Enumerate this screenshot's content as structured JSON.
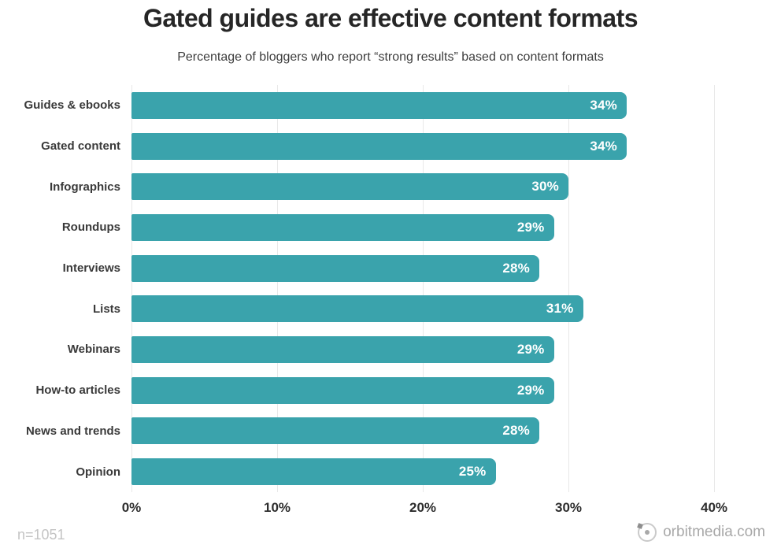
{
  "header": {
    "title": "Gated guides are effective content formats",
    "subtitle": "Percentage of bloggers who report “strong results” based on content formats"
  },
  "chart_data": {
    "type": "bar",
    "orientation": "horizontal",
    "title": "Gated guides are effective content formats",
    "subtitle": "Percentage of bloggers who report “strong results” based on content formats",
    "categories": [
      "Guides & ebooks",
      "Gated content",
      "Infographics",
      "Roundups",
      "Interviews",
      "Lists",
      "Webinars",
      "How-to articles",
      "News and trends",
      "Opinion"
    ],
    "values": [
      34,
      34,
      30,
      29,
      28,
      31,
      29,
      29,
      28,
      25
    ],
    "value_labels": [
      "34%",
      "34%",
      "30%",
      "29%",
      "28%",
      "31%",
      "29%",
      "29%",
      "28%",
      "25%"
    ],
    "xlabel": "",
    "ylabel": "",
    "x_ticks": [
      "0%",
      "10%",
      "20%",
      "30%",
      "40%"
    ],
    "x_tick_values": [
      0,
      10,
      20,
      30,
      40
    ],
    "xlim": [
      0,
      41.2
    ],
    "grid": true,
    "legend": false,
    "bar_color": "#3aa3ac",
    "value_label_color": "#ffffff",
    "gridline_color": "#e8e8e8"
  },
  "footer": {
    "sample_size": "n=1051",
    "brand": "orbitmedia.com",
    "brand_icon": "orbit-logo-icon"
  }
}
